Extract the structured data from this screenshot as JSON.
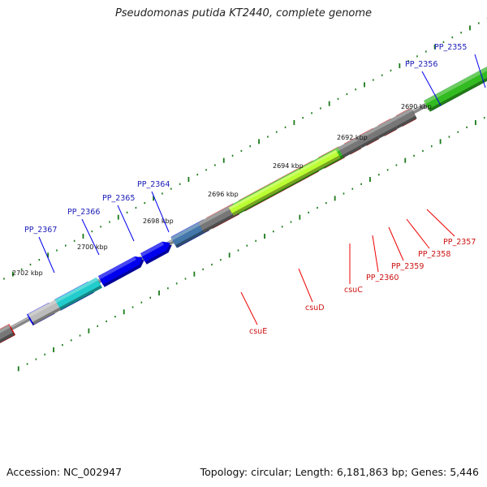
{
  "title": "Pseudomonas putida KT2440, complete genome",
  "footer": {
    "accession": "Accession: NC_002947",
    "summary": "Topology: circular; Length: 6,181,863 bp; Genes: 5,446"
  },
  "scale_labels": [
    "2690 kbp",
    "2692 kbp",
    "2694 kbp",
    "2696 kbp",
    "2698 kbp",
    "2700 kbp",
    "2702 kbp"
  ],
  "forward_gene_labels": [
    "PP_2355",
    "PP_2356",
    "PP_2364",
    "PP_2365",
    "PP_2366",
    "PP_2367"
  ],
  "reverse_gene_labels": [
    "csuE",
    "csuD",
    "csuC",
    "PP_2360",
    "PP_2359",
    "PP_2358",
    "PP_2357"
  ],
  "colors": {
    "cds": "#0000ee",
    "cds_reverse": "#ee0000",
    "gene_track": "#777777",
    "backbone": "#888888",
    "tick": "#1a7a1a",
    "highlight_green": "#33bb22",
    "highlight_lime": "#bbff33",
    "highlight_cyan": "#22cccc",
    "highlight_steel": "#4477aa",
    "highlight_gray": "#bbbbbb"
  }
}
